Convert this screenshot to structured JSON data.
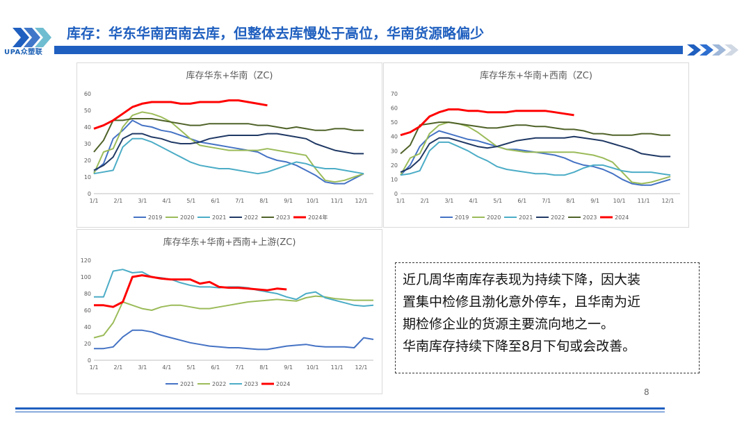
{
  "header": {
    "logo_text": "UPA众塑联",
    "title": "库存：华东华南西南去库，但整体去库慢处于高位，华南货源略偏少"
  },
  "colors": {
    "2019": "#4472c4",
    "2020": "#9bbb59",
    "2021": "#4bacc6",
    "2022": "#1f3864",
    "2023": "#4f6228",
    "2024": "#ff0000"
  },
  "chart_data": [
    {
      "type": "line",
      "title": "库存华东+华南（ZC)",
      "x_ticks": [
        "1/1",
        "2/1",
        "3/1",
        "4/1",
        "5/1",
        "6/1",
        "7/1",
        "8/1",
        "9/1",
        "10/1",
        "11/1",
        "12/1"
      ],
      "ylim": [
        0,
        60
      ],
      "y_ticks": [
        0,
        10,
        20,
        30,
        40,
        50,
        60
      ],
      "legend": [
        "2019",
        "2020",
        "2021",
        "2022",
        "2023",
        "2024年"
      ],
      "series": [
        {
          "name": "2019",
          "color_key": "2019",
          "values": [
            13,
            18,
            33,
            38,
            44,
            41,
            40,
            38,
            37,
            35,
            33,
            31,
            30,
            29,
            28,
            27,
            26,
            25,
            22,
            20,
            19,
            17,
            14,
            11,
            7,
            6,
            6,
            9,
            12
          ]
        },
        {
          "name": "2020",
          "color_key": "2020",
          "values": [
            12,
            25,
            27,
            40,
            47,
            49,
            48,
            46,
            43,
            38,
            33,
            29,
            28,
            27,
            26,
            26,
            26,
            26,
            27,
            26,
            25,
            24,
            23,
            15,
            8,
            7,
            8,
            10,
            12
          ]
        },
        {
          "name": "2021",
          "color_key": "2021",
          "values": [
            12,
            13,
            14,
            28,
            33,
            33,
            31,
            28,
            25,
            22,
            19,
            17,
            16,
            15,
            15,
            14,
            13,
            12,
            13,
            15,
            17,
            19,
            18,
            16,
            15,
            15,
            14,
            13,
            12
          ]
        },
        {
          "name": "2022",
          "color_key": "2022",
          "values": [
            14,
            17,
            22,
            33,
            36,
            36,
            34,
            33,
            31,
            30,
            30,
            31,
            33,
            34,
            35,
            35,
            35,
            35,
            36,
            36,
            35,
            34,
            33,
            30,
            28,
            26,
            25,
            24,
            24
          ]
        },
        {
          "name": "2023",
          "color_key": "2023",
          "values": [
            25,
            32,
            44,
            44,
            45,
            45,
            45,
            44,
            43,
            42,
            41,
            41,
            42,
            42,
            42,
            42,
            42,
            41,
            41,
            40,
            39,
            40,
            39,
            38,
            38,
            39,
            39,
            38,
            38
          ]
        },
        {
          "name": "2024年",
          "color_key": "2024",
          "values": [
            39,
            41,
            44,
            48,
            52,
            54,
            55,
            55,
            55,
            54,
            54,
            55,
            55,
            55,
            56,
            56,
            55,
            54,
            53
          ]
        }
      ]
    },
    {
      "type": "line",
      "title": "库存华东+华南+西南（ZC)",
      "x_ticks": [
        "1/1",
        "2/1",
        "3/1",
        "4/1",
        "5/1",
        "6/1",
        "7/1",
        "8/1",
        "9/1",
        "10/1",
        "11/1",
        "12/1"
      ],
      "ylim": [
        0,
        70
      ],
      "y_ticks": [
        0,
        10,
        20,
        30,
        40,
        50,
        60,
        70
      ],
      "legend": [
        "2019",
        "2020",
        "2021",
        "2022",
        "2023",
        "2024"
      ],
      "series": [
        {
          "name": "2019",
          "color_key": "2019",
          "values": [
            13,
            20,
            33,
            40,
            44,
            42,
            40,
            38,
            37,
            35,
            33,
            31,
            31,
            30,
            29,
            28,
            27,
            25,
            22,
            20,
            19,
            17,
            14,
            10,
            7,
            6,
            6,
            8,
            10
          ]
        },
        {
          "name": "2020",
          "color_key": "2020",
          "values": [
            13,
            25,
            28,
            42,
            48,
            50,
            49,
            47,
            43,
            38,
            33,
            31,
            30,
            29,
            29,
            29,
            29,
            29,
            29,
            28,
            27,
            25,
            22,
            15,
            8,
            7,
            8,
            10,
            12
          ]
        },
        {
          "name": "2021",
          "color_key": "2021",
          "values": [
            13,
            14,
            16,
            30,
            36,
            36,
            33,
            30,
            26,
            23,
            19,
            17,
            16,
            15,
            14,
            14,
            13,
            13,
            15,
            18,
            20,
            20,
            18,
            16,
            15,
            15,
            15,
            14,
            13
          ]
        },
        {
          "name": "2022",
          "color_key": "2022",
          "values": [
            15,
            18,
            24,
            35,
            39,
            39,
            37,
            35,
            33,
            32,
            33,
            35,
            37,
            38,
            39,
            39,
            39,
            39,
            40,
            39,
            38,
            37,
            35,
            33,
            31,
            28,
            27,
            26,
            26
          ]
        },
        {
          "name": "2023",
          "color_key": "2023",
          "values": [
            28,
            34,
            48,
            49,
            50,
            50,
            49,
            48,
            47,
            46,
            46,
            47,
            48,
            48,
            47,
            47,
            46,
            45,
            45,
            44,
            42,
            42,
            41,
            41,
            41,
            42,
            42,
            41,
            41
          ]
        },
        {
          "name": "2024",
          "color_key": "2024",
          "values": [
            41,
            43,
            47,
            54,
            57,
            59,
            59,
            58,
            58,
            57,
            57,
            57,
            58,
            58,
            58,
            58,
            57,
            56,
            55
          ]
        }
      ]
    },
    {
      "type": "line",
      "title": "库存华东+华南+西南+上游(ZC)",
      "x_ticks": [
        "1/1",
        "2/1",
        "3/1",
        "4/1",
        "5/1",
        "6/1",
        "7/1",
        "8/1",
        "9/1",
        "10/1",
        "11/1",
        "12/1"
      ],
      "ylim": [
        0,
        120
      ],
      "y_ticks": [
        0,
        20,
        40,
        60,
        80,
        100,
        120
      ],
      "legend": [
        "2021",
        "2022",
        "2023",
        "2024"
      ],
      "series": [
        {
          "name": "2021",
          "color_key": "2019",
          "values": [
            14,
            14,
            16,
            28,
            36,
            36,
            34,
            30,
            27,
            24,
            21,
            19,
            17,
            16,
            15,
            15,
            14,
            13,
            13,
            15,
            17,
            18,
            19,
            17,
            16,
            16,
            16,
            15,
            27,
            25
          ]
        },
        {
          "name": "2022",
          "color_key": "2020",
          "values": [
            27,
            30,
            45,
            70,
            66,
            62,
            60,
            64,
            66,
            66,
            64,
            62,
            62,
            64,
            66,
            68,
            70,
            71,
            72,
            73,
            72,
            71,
            75,
            77,
            76,
            74,
            73,
            72,
            72,
            72
          ]
        },
        {
          "name": "2023",
          "color_key": "2021",
          "values": [
            76,
            76,
            107,
            109,
            105,
            106,
            100,
            99,
            97,
            93,
            90,
            88,
            88,
            87,
            88,
            88,
            87,
            84,
            82,
            80,
            76,
            73,
            80,
            82,
            75,
            72,
            69,
            66,
            65,
            66
          ]
        },
        {
          "name": "2024",
          "color_key": "2024",
          "values": [
            66,
            66,
            64,
            70,
            100,
            102,
            100,
            98,
            97,
            97,
            97,
            92,
            94,
            88,
            87,
            87,
            86,
            85,
            84,
            86,
            85
          ]
        }
      ]
    }
  ],
  "textbox": {
    "lines": [
      "近几周华南库存表现为持续下降，因大装",
      "置集中检修且渤化意外停车，且华南为近",
      "期检修企业的货源主要流向地之一。",
      "华南库存持续下降至8月下旬或会改善。"
    ]
  },
  "page_number": "8"
}
